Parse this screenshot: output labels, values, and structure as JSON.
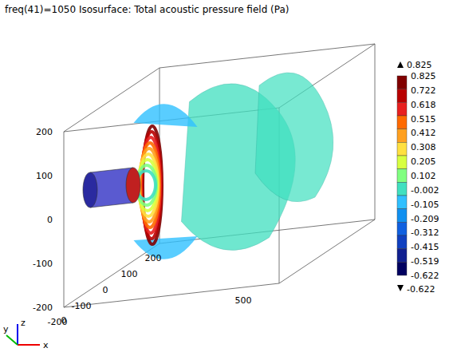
{
  "chart_data": {
    "type": "isosurface",
    "title": "freq(41)=1050  Isosurface: Total acoustic pressure field (Pa)",
    "colorbar": {
      "range": [
        -0.622,
        0.825
      ],
      "ticks": [
        0.825,
        0.722,
        0.618,
        0.515,
        0.412,
        0.308,
        0.205,
        0.102,
        -0.002,
        -0.105,
        -0.209,
        -0.312,
        -0.415,
        -0.519,
        -0.622
      ],
      "colors": [
        "#800000",
        "#b80000",
        "#e82020",
        "#ff6a00",
        "#ffa020",
        "#ffe040",
        "#d8ff40",
        "#80ff80",
        "#40e0c0",
        "#30c0ff",
        "#1090f0",
        "#1060e0",
        "#1040c0",
        "#102090",
        "#000060"
      ]
    },
    "xlim": [
      0,
      600
    ],
    "xticks": [
      0,
      500
    ],
    "ylim": [
      -200,
      200
    ],
    "yticks": [
      -200,
      -100,
      0,
      100,
      200
    ],
    "zlim": [
      -200,
      200
    ],
    "zticks": [
      -200,
      -100,
      0,
      100,
      200
    ],
    "axis_labels": [
      "x",
      "y",
      "z"
    ]
  }
}
